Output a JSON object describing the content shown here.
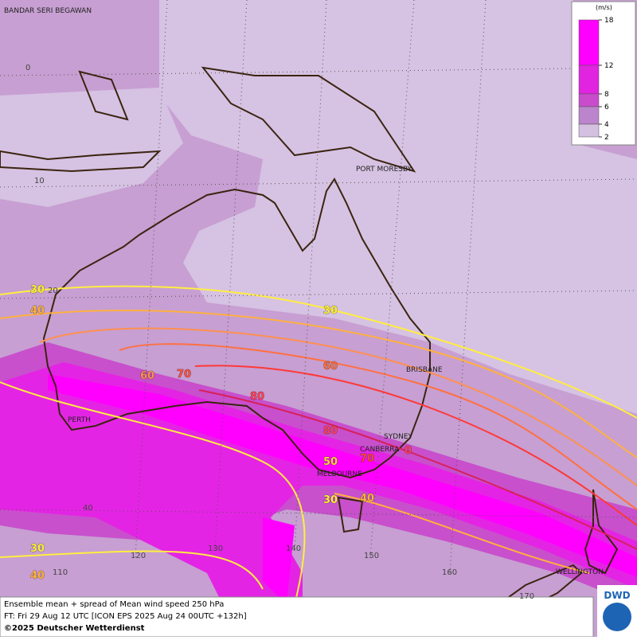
{
  "map": {
    "title_cities": [
      "BANDAR SERI BEGAWAN",
      "PORT MORESBY",
      "BRISBANE",
      "PERTH",
      "SYDNEY",
      "CANBERRA",
      "MELBOURNE",
      "WELLINGTON"
    ],
    "lat_labels": [
      "0",
      "10",
      "20",
      "40"
    ],
    "lon_labels": [
      "110",
      "120",
      "130",
      "140",
      "150",
      "160",
      "170"
    ],
    "contour_labels": [
      "30",
      "40",
      "30",
      "60",
      "70",
      "60",
      "80",
      "80",
      "70",
      "50",
      "30",
      "40",
      "30",
      "40",
      "0"
    ]
  },
  "legend": {
    "unit": "(m/s)",
    "ticks": [
      18,
      12,
      8,
      6,
      4,
      2
    ],
    "band_colors": [
      "#ff00ff",
      "#e024e0",
      "#c84ccc",
      "#bb84cc",
      "#d4c0e0"
    ]
  },
  "footer": {
    "lines": [
      "Ensemble mean + spread of Mean wind speed 250 hPa",
      "FT: Fri 29 Aug 12 UTC [ICON EPS 2025 Aug 24 00UTC +132h]",
      "©2025 Deutscher Wetterdienst"
    ]
  },
  "logo": "DWD"
}
